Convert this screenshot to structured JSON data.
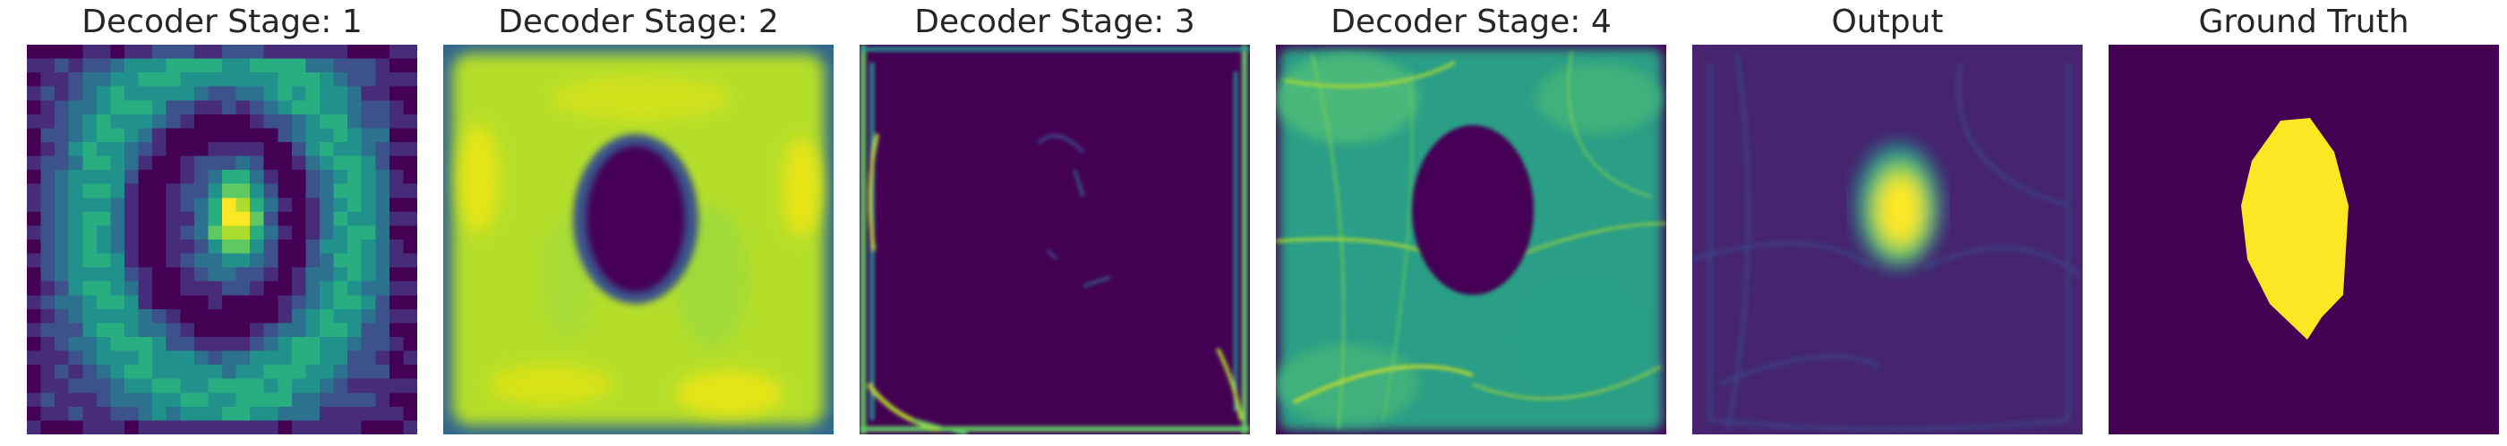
{
  "colors": {
    "viridis_dark": "#440154",
    "viridis_blue": "#3b528b",
    "viridis_teal": "#21918c",
    "viridis_green": "#5ec962",
    "viridis_yellow": "#fde725",
    "title_text": "#262626",
    "background": "#ffffff"
  },
  "colormap": "viridis",
  "panels": [
    {
      "title": "Decoder Stage: 1"
    },
    {
      "title": "Decoder Stage: 2"
    },
    {
      "title": "Decoder Stage: 3"
    },
    {
      "title": "Decoder Stage: 4"
    },
    {
      "title": "Output"
    },
    {
      "title": "Ground Truth"
    }
  ]
}
